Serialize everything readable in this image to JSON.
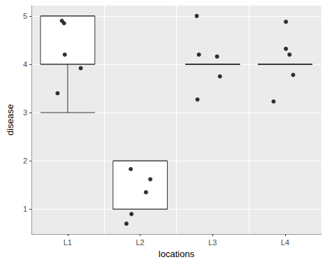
{
  "chart_data": {
    "type": "boxplot",
    "x_label": "locations",
    "y_label": "disease",
    "categories": [
      "L1",
      "L2",
      "L3",
      "L4"
    ],
    "boxes": [
      [
        3,
        4,
        4,
        5,
        5
      ],
      [
        1,
        1,
        1,
        2,
        2
      ],
      [
        4,
        4,
        4,
        4,
        4
      ],
      [
        4,
        4,
        4,
        4,
        4
      ]
    ],
    "points": {
      "x": [
        0.92,
        0.95,
        0.96,
        1.18,
        0.86,
        1.87,
        2.14,
        2.08,
        1.88,
        1.81,
        2.78,
        2.81,
        3.06,
        3.1,
        2.79,
        4.01,
        4.01,
        4.06,
        4.11,
        3.84
      ],
      "y": [
        4.9,
        4.85,
        4.2,
        3.92,
        3.4,
        1.83,
        1.62,
        1.35,
        0.9,
        0.7,
        5.0,
        4.2,
        4.16,
        3.75,
        3.27,
        4.88,
        4.32,
        4.2,
        3.78,
        3.23
      ]
    },
    "ylim": [
      0.485,
      5.215
    ],
    "yticks": [
      1,
      2,
      3,
      4,
      5
    ],
    "grid": true
  }
}
